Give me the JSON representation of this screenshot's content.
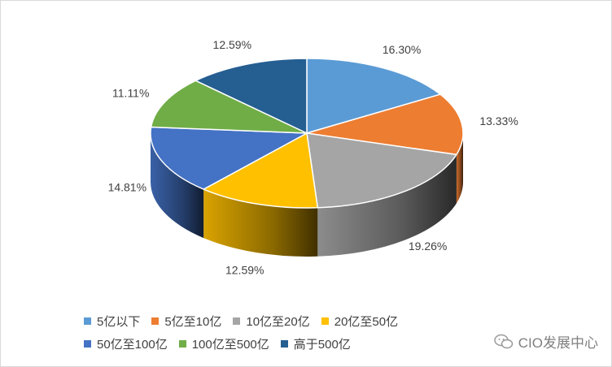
{
  "chart_data": {
    "type": "pie",
    "style": "3d",
    "legend_position": "bottom",
    "slices": [
      {
        "label": "5亿以下",
        "value": 16.3,
        "value_label": "16.30%",
        "color": "#5b9bd5"
      },
      {
        "label": "5亿至10亿",
        "value": 13.33,
        "value_label": "13.33%",
        "color": "#ed7d31"
      },
      {
        "label": "10亿至20亿",
        "value": 19.26,
        "value_label": "19.26%",
        "color": "#a5a5a5"
      },
      {
        "label": "20亿至50亿",
        "value": 12.59,
        "value_label": "12.59%",
        "color": "#ffc000"
      },
      {
        "label": "50亿至100亿",
        "value": 14.81,
        "value_label": "14.81%",
        "color": "#4472c4"
      },
      {
        "label": "100亿至500亿",
        "value": 11.11,
        "value_label": "11.11%",
        "color": "#70ad47"
      },
      {
        "label": "高于500亿",
        "value": 12.59,
        "value_label": "12.59%",
        "color": "#255e91"
      }
    ]
  },
  "watermark": {
    "text": "CIO发展中心",
    "icon": "wechat-icon"
  }
}
